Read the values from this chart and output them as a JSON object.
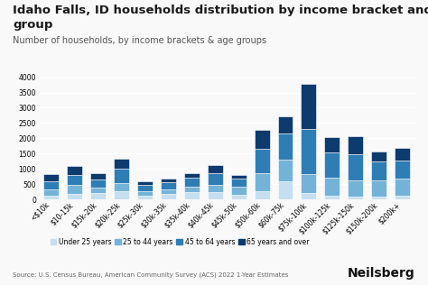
{
  "title_line1": "Idaho Falls, ID households distribution by income bracket and age",
  "title_line2": "group",
  "subtitle": "Number of households, by income brackets & age groups",
  "source": "Source: U.S. Census Bureau, American Community Survey (ACS) 2022 1-Year Estimates",
  "categories": [
    "<$10k",
    "$10-15k",
    "$15k-20k",
    "$20k-25k",
    "$25k-30k",
    "$30k-35k",
    "$35k-40k",
    "$40k-45k",
    "$45k-50k",
    "$50k-60k",
    "$60k-75k",
    "$75k-100k",
    "$100k-125k",
    "$125k-150k",
    "$150k-200k",
    "$200k+"
  ],
  "series": {
    "Under 25 years": [
      130,
      170,
      200,
      270,
      130,
      170,
      240,
      230,
      160,
      270,
      590,
      220,
      120,
      100,
      90,
      120
    ],
    "25 to 44 years": [
      200,
      300,
      180,
      280,
      150,
      170,
      180,
      260,
      250,
      580,
      700,
      600,
      600,
      530,
      540,
      550
    ],
    "45 to 64 years": [
      270,
      330,
      270,
      450,
      200,
      220,
      280,
      380,
      280,
      820,
      870,
      1500,
      820,
      850,
      620,
      600
    ],
    "65 years and over": [
      220,
      310,
      200,
      340,
      120,
      110,
      160,
      250,
      120,
      620,
      560,
      1470,
      500,
      600,
      320,
      430
    ]
  },
  "colors": {
    "Under 25 years": "#c6dff0",
    "25 to 44 years": "#74b3d8",
    "45 to 64 years": "#2e7db5",
    "65 years and over": "#0d3b6e"
  },
  "ylim": [
    0,
    4100
  ],
  "yticks": [
    0,
    500,
    1000,
    1500,
    2000,
    2500,
    3000,
    3500,
    4000
  ],
  "background_color": "#f9f9f9",
  "title_fontsize": 9.5,
  "subtitle_fontsize": 7,
  "tick_fontsize": 5.5,
  "source_fontsize": 5,
  "legend_fontsize": 5.5,
  "brand_fontsize": 10
}
